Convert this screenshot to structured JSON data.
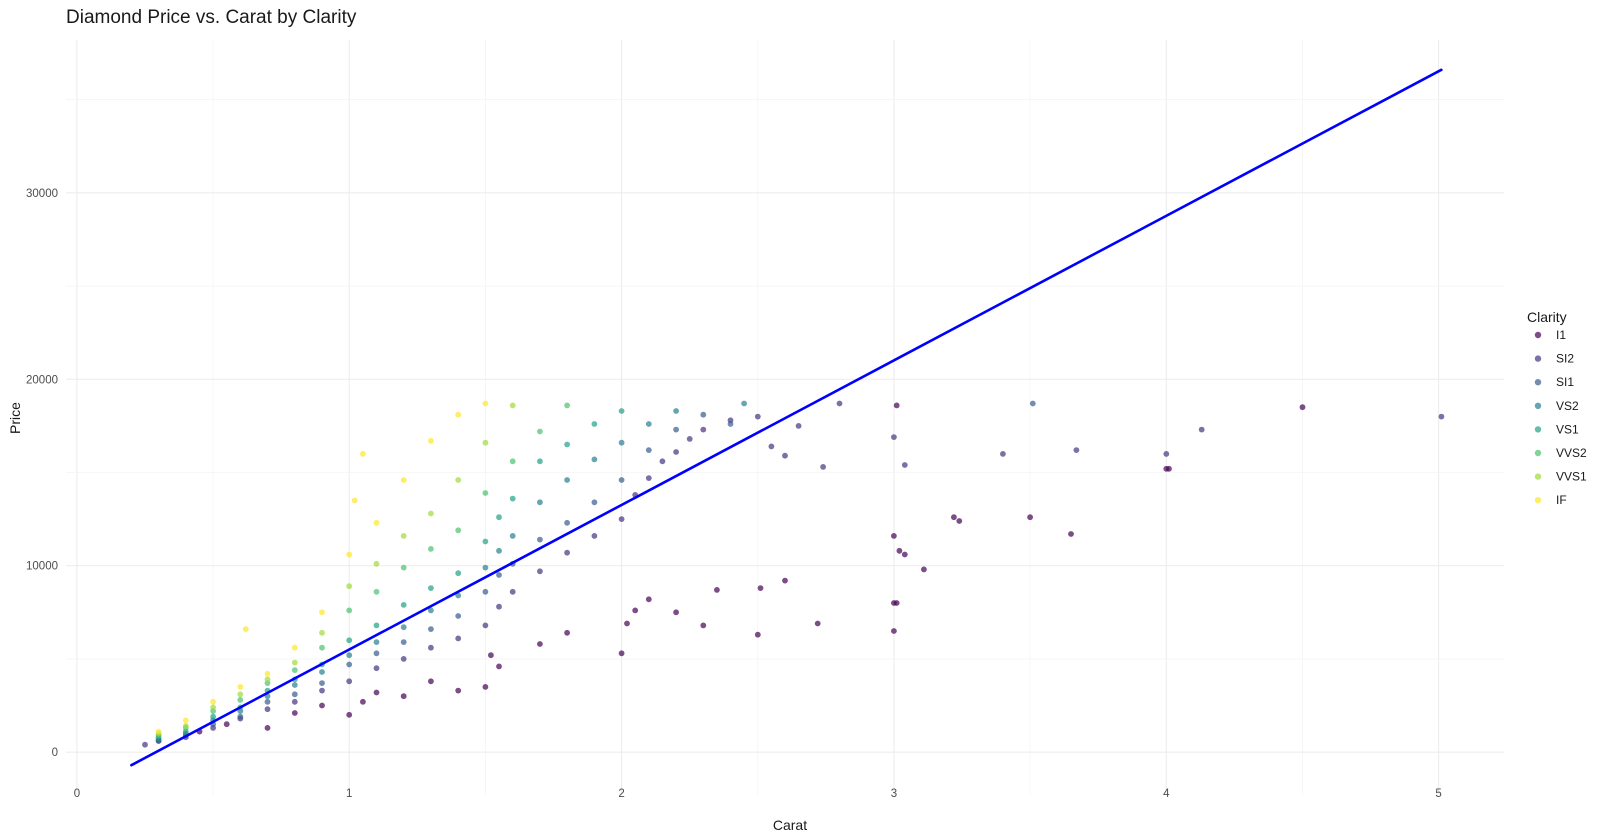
{
  "title": "Diamond Price vs. Carat by Clarity",
  "chart_data": {
    "type": "scatter",
    "title": "Diamond Price vs. Carat by Clarity",
    "xlabel": "Carat",
    "ylabel": "Price",
    "xlim": [
      -0.04,
      5.24
    ],
    "ylim": [
      -2300,
      38200
    ],
    "x_ticks": [
      0,
      1,
      2,
      3,
      4,
      5
    ],
    "y_ticks": [
      0,
      10000,
      20000,
      30000
    ],
    "grid": true,
    "legend": {
      "title": "Clarity",
      "position": "right",
      "entries": [
        "I1",
        "SI2",
        "SI1",
        "VS2",
        "VS1",
        "VVS2",
        "VVS1",
        "IF"
      ]
    },
    "colors": {
      "I1": "#440154",
      "SI2": "#46337E",
      "SI1": "#365C8D",
      "VS2": "#277F8E",
      "VS1": "#1FA187",
      "VVS2": "#4AC16D",
      "VVS1": "#A0DA39",
      "IF": "#FDE725"
    },
    "point_alpha": 0.7,
    "trend_line": {
      "color": "#0000FF",
      "x": [
        0.2,
        5.01
      ],
      "y": [
        -700,
        36600
      ]
    },
    "series": [
      {
        "name": "I1",
        "points": [
          [
            0.45,
            1100
          ],
          [
            0.55,
            1500
          ],
          [
            0.7,
            1300
          ],
          [
            0.8,
            2100
          ],
          [
            0.9,
            2500
          ],
          [
            1.0,
            2000
          ],
          [
            1.05,
            2700
          ],
          [
            1.1,
            3200
          ],
          [
            1.2,
            3000
          ],
          [
            1.3,
            3800
          ],
          [
            1.4,
            3300
          ],
          [
            1.5,
            3500
          ],
          [
            1.52,
            5200
          ],
          [
            1.55,
            4600
          ],
          [
            1.7,
            5800
          ],
          [
            1.8,
            6400
          ],
          [
            2.0,
            5300
          ],
          [
            2.02,
            6900
          ],
          [
            2.05,
            7600
          ],
          [
            2.1,
            8200
          ],
          [
            2.2,
            7500
          ],
          [
            2.3,
            6800
          ],
          [
            2.35,
            8700
          ],
          [
            2.5,
            6300
          ],
          [
            2.51,
            8800
          ],
          [
            2.6,
            9200
          ],
          [
            2.72,
            6900
          ],
          [
            3.0,
            6500
          ],
          [
            3.0,
            8000
          ],
          [
            3.01,
            8000
          ],
          [
            3.02,
            10800
          ],
          [
            3.04,
            10600
          ],
          [
            3.11,
            9800
          ],
          [
            3.0,
            11600
          ],
          [
            3.01,
            18600
          ],
          [
            3.22,
            12600
          ],
          [
            3.24,
            12400
          ],
          [
            3.5,
            12600
          ],
          [
            3.65,
            11700
          ],
          [
            4.0,
            15200
          ],
          [
            4.01,
            15200
          ],
          [
            4.5,
            18500
          ]
        ]
      },
      {
        "name": "SI2",
        "points": [
          [
            0.25,
            400
          ],
          [
            0.3,
            600
          ],
          [
            0.4,
            800
          ],
          [
            0.5,
            1300
          ],
          [
            0.6,
            1800
          ],
          [
            0.7,
            2300
          ],
          [
            0.8,
            2700
          ],
          [
            0.9,
            3300
          ],
          [
            1.0,
            3800
          ],
          [
            1.1,
            4500
          ],
          [
            1.2,
            5000
          ],
          [
            1.3,
            5600
          ],
          [
            1.4,
            6100
          ],
          [
            1.5,
            6800
          ],
          [
            1.55,
            7800
          ],
          [
            1.6,
            8600
          ],
          [
            1.7,
            9700
          ],
          [
            1.8,
            10700
          ],
          [
            1.9,
            11600
          ],
          [
            2.0,
            12500
          ],
          [
            2.05,
            13800
          ],
          [
            2.1,
            14700
          ],
          [
            2.15,
            15600
          ],
          [
            2.2,
            16100
          ],
          [
            2.25,
            16800
          ],
          [
            2.3,
            17300
          ],
          [
            2.4,
            17800
          ],
          [
            2.5,
            18000
          ],
          [
            2.55,
            16400
          ],
          [
            2.6,
            15900
          ],
          [
            2.65,
            17500
          ],
          [
            2.74,
            15300
          ],
          [
            2.8,
            18700
          ],
          [
            3.0,
            16900
          ],
          [
            3.04,
            15400
          ],
          [
            3.4,
            16000
          ],
          [
            3.67,
            16200
          ],
          [
            4.0,
            16000
          ],
          [
            4.13,
            17300
          ],
          [
            5.01,
            18000
          ]
        ]
      },
      {
        "name": "SI1",
        "points": [
          [
            0.3,
            600
          ],
          [
            0.4,
            900
          ],
          [
            0.5,
            1500
          ],
          [
            0.6,
            1900
          ],
          [
            0.7,
            2700
          ],
          [
            0.8,
            3100
          ],
          [
            0.9,
            3700
          ],
          [
            1.0,
            4700
          ],
          [
            1.1,
            5300
          ],
          [
            1.2,
            5900
          ],
          [
            1.3,
            6600
          ],
          [
            1.4,
            7300
          ],
          [
            1.5,
            8600
          ],
          [
            1.55,
            9500
          ],
          [
            1.6,
            10100
          ],
          [
            1.7,
            11400
          ],
          [
            1.8,
            12300
          ],
          [
            1.9,
            13400
          ],
          [
            2.0,
            14600
          ],
          [
            2.1,
            16200
          ],
          [
            2.2,
            17300
          ],
          [
            2.3,
            18100
          ],
          [
            2.4,
            17600
          ],
          [
            3.51,
            18700
          ]
        ]
      },
      {
        "name": "VS2",
        "points": [
          [
            0.3,
            700
          ],
          [
            0.4,
            1000
          ],
          [
            0.5,
            1700
          ],
          [
            0.6,
            2200
          ],
          [
            0.7,
            3000
          ],
          [
            0.8,
            3600
          ],
          [
            0.9,
            4300
          ],
          [
            1.0,
            5200
          ],
          [
            1.1,
            5900
          ],
          [
            1.2,
            6700
          ],
          [
            1.3,
            7600
          ],
          [
            1.4,
            8400
          ],
          [
            1.5,
            9900
          ],
          [
            1.55,
            10800
          ],
          [
            1.6,
            11600
          ],
          [
            1.7,
            13400
          ],
          [
            1.8,
            14600
          ],
          [
            1.9,
            15700
          ],
          [
            2.0,
            16600
          ],
          [
            2.1,
            17600
          ],
          [
            2.2,
            18300
          ],
          [
            2.45,
            18700
          ]
        ]
      },
      {
        "name": "VS1",
        "points": [
          [
            0.3,
            800
          ],
          [
            0.4,
            1100
          ],
          [
            0.5,
            1900
          ],
          [
            0.6,
            2400
          ],
          [
            0.7,
            3300
          ],
          [
            0.8,
            3900
          ],
          [
            0.9,
            4700
          ],
          [
            1.0,
            6000
          ],
          [
            1.1,
            6800
          ],
          [
            1.2,
            7900
          ],
          [
            1.3,
            8800
          ],
          [
            1.4,
            9600
          ],
          [
            1.5,
            11300
          ],
          [
            1.55,
            12600
          ],
          [
            1.6,
            13600
          ],
          [
            1.7,
            15600
          ],
          [
            1.8,
            16500
          ],
          [
            1.9,
            17600
          ],
          [
            2.0,
            18300
          ]
        ]
      },
      {
        "name": "VVS2",
        "points": [
          [
            0.3,
            900
          ],
          [
            0.4,
            1300
          ],
          [
            0.5,
            2200
          ],
          [
            0.6,
            2800
          ],
          [
            0.7,
            3700
          ],
          [
            0.8,
            4400
          ],
          [
            0.9,
            5600
          ],
          [
            1.0,
            7600
          ],
          [
            1.1,
            8600
          ],
          [
            1.2,
            9900
          ],
          [
            1.3,
            10900
          ],
          [
            1.4,
            11900
          ],
          [
            1.5,
            13900
          ],
          [
            1.6,
            15600
          ],
          [
            1.7,
            17200
          ],
          [
            1.8,
            18600
          ]
        ]
      },
      {
        "name": "VVS1",
        "points": [
          [
            0.3,
            1000
          ],
          [
            0.4,
            1400
          ],
          [
            0.5,
            2400
          ],
          [
            0.6,
            3100
          ],
          [
            0.7,
            3900
          ],
          [
            0.8,
            4800
          ],
          [
            0.9,
            6400
          ],
          [
            1.0,
            8900
          ],
          [
            1.1,
            10100
          ],
          [
            1.2,
            11600
          ],
          [
            1.3,
            12800
          ],
          [
            1.4,
            14600
          ],
          [
            1.5,
            16600
          ],
          [
            1.6,
            18600
          ]
        ]
      },
      {
        "name": "IF",
        "points": [
          [
            0.3,
            1100
          ],
          [
            0.4,
            1700
          ],
          [
            0.5,
            2700
          ],
          [
            0.6,
            3500
          ],
          [
            0.62,
            6600
          ],
          [
            0.7,
            4200
          ],
          [
            0.8,
            5600
          ],
          [
            0.9,
            7500
          ],
          [
            1.0,
            10600
          ],
          [
            1.02,
            13500
          ],
          [
            1.05,
            16000
          ],
          [
            1.1,
            12300
          ],
          [
            1.2,
            14600
          ],
          [
            1.3,
            16700
          ],
          [
            1.4,
            18100
          ],
          [
            1.5,
            18700
          ]
        ]
      }
    ]
  }
}
